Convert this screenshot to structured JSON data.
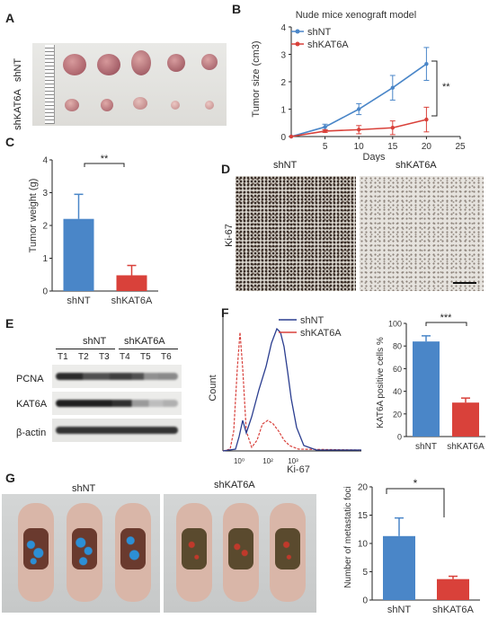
{
  "panels": {
    "A": {
      "label": "A",
      "row_labels": [
        "shNT",
        "shKAT6A"
      ]
    },
    "B": {
      "label": "B"
    },
    "C": {
      "label": "C"
    },
    "D": {
      "label": "D",
      "col_labels": [
        "shNT",
        "shKAT6A"
      ],
      "row_label": "Ki-67"
    },
    "E": {
      "label": "E",
      "group_labels": [
        "shNT",
        "shKAT6A"
      ],
      "lanes": [
        "T1",
        "T2",
        "T3",
        "T4",
        "T5",
        "T6"
      ],
      "rows": [
        "PCNA",
        "KAT6A",
        "β-actin"
      ]
    },
    "F": {
      "label": "F",
      "legend": [
        "shNT",
        "shKAT6A"
      ],
      "xlabel": "Ki-67",
      "ylabel": "Count",
      "tick_labels": [
        "10⁰",
        "10²",
        "10³"
      ]
    },
    "G": {
      "label": "G",
      "col_labels": [
        "shNT",
        "shKAT6A"
      ]
    }
  },
  "colors": {
    "blue": "#4a86c8",
    "red": "#d9413a",
    "navy": "#2a3d8f",
    "hist_red": "#d8413c"
  },
  "chart_data": [
    {
      "id": "B",
      "type": "line",
      "title": "Nude mice xenograft model",
      "xlabel": "Days",
      "ylabel": "Tumor size (cm3)",
      "xlim": [
        0,
        25
      ],
      "ylim": [
        0,
        4
      ],
      "xticks": [
        5,
        10,
        15,
        20,
        25
      ],
      "yticks": [
        0,
        1,
        2,
        3,
        4
      ],
      "x": [
        0,
        5,
        10,
        15,
        20
      ],
      "series": [
        {
          "name": "shNT",
          "color": "#4a86c8",
          "values": [
            0,
            0.35,
            1.0,
            1.78,
            2.65
          ],
          "err": [
            0,
            0.1,
            0.2,
            0.45,
            0.6
          ]
        },
        {
          "name": "shKAT6A",
          "color": "#d9413a",
          "values": [
            0,
            0.2,
            0.25,
            0.32,
            0.62
          ],
          "err": [
            0,
            0.05,
            0.15,
            0.25,
            0.45
          ]
        }
      ],
      "annotation": "**",
      "legend": "top-left"
    },
    {
      "id": "C",
      "type": "bar",
      "xlabel": "",
      "ylabel": "Tumor weight (g)",
      "categories": [
        "shNT",
        "shKAT6A"
      ],
      "values": [
        2.2,
        0.48
      ],
      "err": [
        0.75,
        0.3
      ],
      "colors": [
        "#4a86c8",
        "#d9413a"
      ],
      "ylim": [
        0,
        4
      ],
      "yticks": [
        0,
        1,
        2,
        3,
        4
      ],
      "annotation": "**"
    },
    {
      "id": "F-hist",
      "type": "line",
      "xlabel": "Ki-67",
      "ylabel": "Count",
      "series": [
        {
          "name": "shNT",
          "color": "#2a3d8f"
        },
        {
          "name": "shKAT6A",
          "color": "#d8413c"
        }
      ]
    },
    {
      "id": "F-bar",
      "type": "bar",
      "ylabel": "KAT6A positive cells %",
      "categories": [
        "shNT",
        "shKAT6A"
      ],
      "values": [
        84,
        30
      ],
      "err": [
        5,
        4
      ],
      "colors": [
        "#4a86c8",
        "#d9413a"
      ],
      "ylim": [
        0,
        100
      ],
      "yticks": [
        0,
        20,
        40,
        60,
        80,
        100
      ],
      "annotation": "***"
    },
    {
      "id": "G",
      "type": "bar",
      "ylabel": "Number  of  metastatic foci",
      "categories": [
        "shNT",
        "shKAT6A"
      ],
      "values": [
        11.3,
        3.7
      ],
      "err": [
        3.2,
        0.5
      ],
      "colors": [
        "#4a86c8",
        "#d9413a"
      ],
      "ylim": [
        0,
        20
      ],
      "yticks": [
        0,
        5,
        10,
        15,
        20
      ],
      "annotation": "*"
    }
  ]
}
